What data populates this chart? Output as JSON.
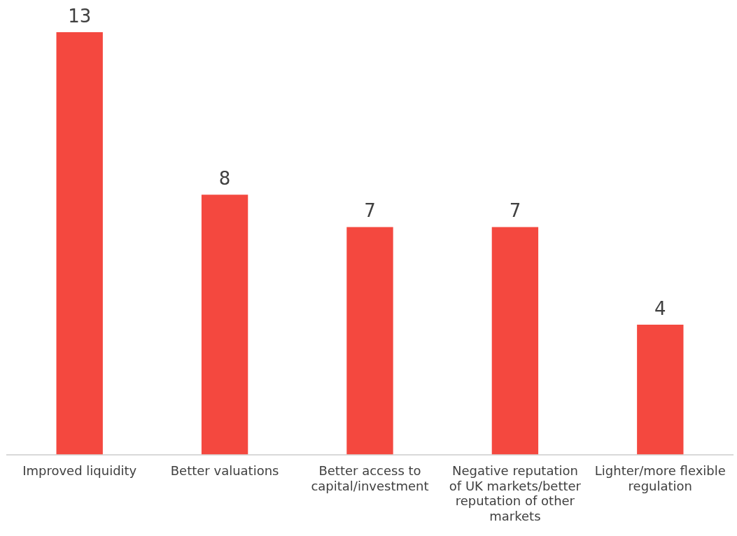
{
  "chart_data": {
    "type": "bar",
    "categories": [
      "Improved liquidity",
      "Better valuations",
      "Better access to capital/investment",
      "Negative reputation of UK markets/better reputation of other markets",
      "Lighter/more flexible regulation"
    ],
    "values": [
      13,
      8,
      7,
      7,
      4
    ],
    "color": "#f4483f",
    "data_labels": true,
    "tick_labels": "x",
    "grid": false,
    "legend": false
  }
}
